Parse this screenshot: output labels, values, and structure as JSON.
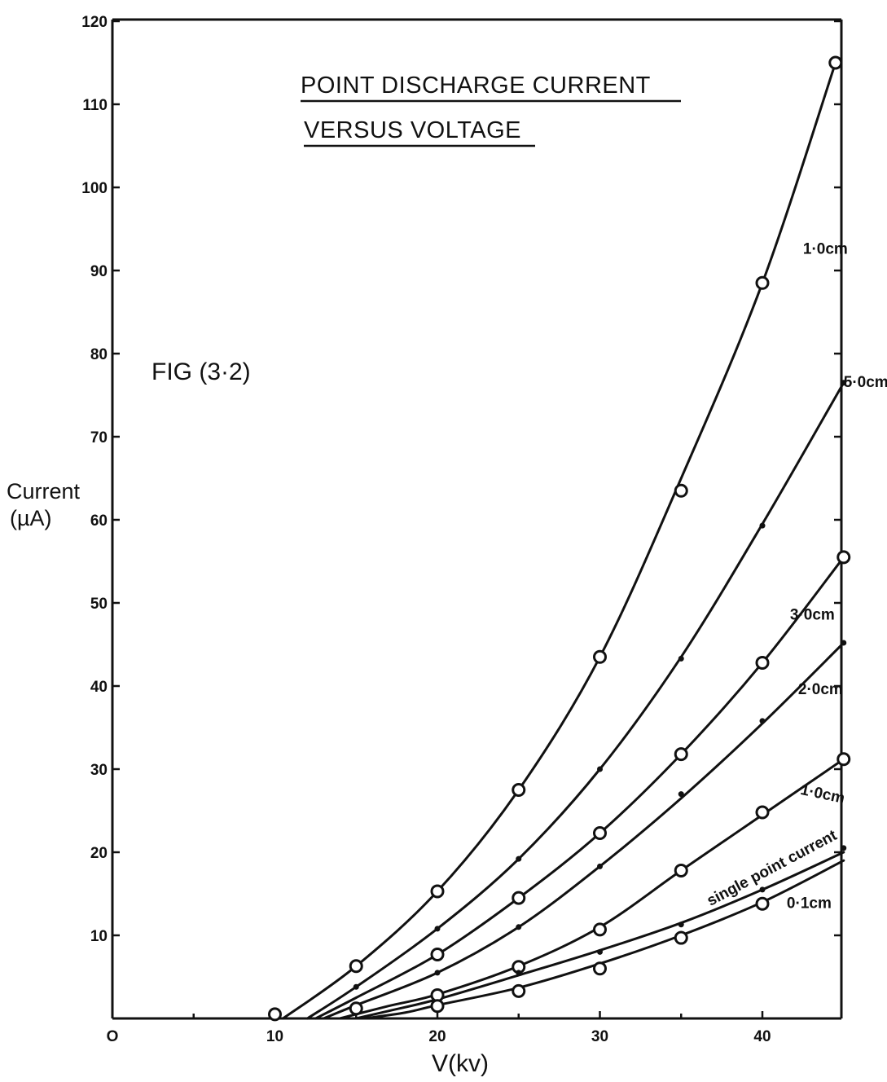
{
  "chart_data": {
    "type": "line",
    "title": "POINT DISCHARGE CURRENT",
    "subtitle": "VERSUS VOLTAGE",
    "annotation": "FIG (3·2)",
    "xlabel": "V(kv)",
    "ylabel_line1": "Current",
    "ylabel_line2": "(µA)",
    "xlim": [
      0,
      45
    ],
    "ylim": [
      0,
      120
    ],
    "x_ticks": [
      "O",
      "10",
      "20",
      "30",
      "40"
    ],
    "x_tick_values": [
      0,
      10,
      20,
      30,
      40
    ],
    "y_ticks": [
      "10",
      "20",
      "30",
      "40",
      "50",
      "60",
      "70",
      "80",
      "90",
      "100",
      "110",
      "120"
    ],
    "y_tick_values": [
      10,
      20,
      30,
      40,
      50,
      60,
      70,
      80,
      90,
      100,
      110,
      120
    ],
    "grid": false,
    "series": [
      {
        "name": "1·0cm",
        "marker": "open",
        "x": [
          10,
          15,
          20,
          25,
          30,
          35,
          40,
          44.5
        ],
        "y": [
          0.5,
          6.3,
          15.3,
          27.5,
          43.5,
          63.5,
          88.5,
          115
        ],
        "curve": [
          [
            10.5,
            0
          ],
          [
            15,
            6.3
          ],
          [
            20,
            15.3
          ],
          [
            25,
            27.5
          ],
          [
            30,
            43.5
          ],
          [
            35,
            65
          ],
          [
            40,
            88.5
          ],
          [
            44.5,
            115
          ]
        ]
      },
      {
        "name": "5·0cm",
        "marker": "dot",
        "x": [
          15,
          20,
          25,
          30,
          35,
          40,
          45
        ],
        "y": [
          3.8,
          10.8,
          19.2,
          30,
          43.3,
          59.3,
          76.5
        ],
        "curve": [
          [
            12,
            0
          ],
          [
            15,
            3.8
          ],
          [
            20,
            10.8
          ],
          [
            25,
            19.2
          ],
          [
            30,
            30
          ],
          [
            35,
            43.5
          ],
          [
            40,
            59.5
          ],
          [
            45,
            76.5
          ]
        ]
      },
      {
        "name": "3·0cm",
        "marker": "open",
        "x": [
          20,
          25,
          30,
          35,
          40,
          45
        ],
        "y": [
          7.7,
          14.5,
          22.3,
          31.8,
          42.8,
          55.5
        ],
        "curve": [
          [
            12.5,
            0
          ],
          [
            15,
            2.5
          ],
          [
            20,
            7.7
          ],
          [
            25,
            14.5
          ],
          [
            30,
            22.3
          ],
          [
            35,
            31.8
          ],
          [
            40,
            42.8
          ],
          [
            45,
            55.5
          ]
        ]
      },
      {
        "name": "2·0cm",
        "marker": "dot",
        "x": [
          20,
          25,
          30,
          35,
          40,
          45
        ],
        "y": [
          5.5,
          11,
          18.3,
          27,
          35.8,
          45.2
        ],
        "curve": [
          [
            13,
            0
          ],
          [
            15,
            1.6
          ],
          [
            20,
            5.5
          ],
          [
            25,
            11
          ],
          [
            30,
            18.3
          ],
          [
            35,
            26.5
          ],
          [
            40,
            35.5
          ],
          [
            45,
            45.2
          ]
        ]
      },
      {
        "name": "1·0cm",
        "marker": "open",
        "x": [
          20,
          25,
          30,
          35,
          40,
          45
        ],
        "y": [
          2.8,
          6.2,
          10.7,
          17.8,
          24.8,
          31.2
        ],
        "curve": [
          [
            14,
            0
          ],
          [
            17,
            1.5
          ],
          [
            20,
            2.9
          ],
          [
            25,
            6.3
          ],
          [
            30,
            11
          ],
          [
            35,
            17.8
          ],
          [
            40,
            24.5
          ],
          [
            45,
            31.2
          ]
        ]
      },
      {
        "name": "single point current",
        "marker": "dot",
        "x": [
          25,
          30,
          35,
          40,
          45
        ],
        "y": [
          5.5,
          8,
          11.3,
          15.5,
          20.5
        ],
        "curve": [
          [
            15,
            0
          ],
          [
            17,
            0.9
          ],
          [
            20,
            2.3
          ],
          [
            25,
            5.2
          ],
          [
            30,
            8.2
          ],
          [
            35,
            11.5
          ],
          [
            40,
            15.5
          ],
          [
            45,
            20
          ]
        ]
      },
      {
        "name": "0·1cm",
        "marker": "open",
        "x": [
          15,
          20,
          25,
          30,
          35,
          40
        ],
        "y": [
          1.2,
          1.5,
          3.3,
          6,
          9.7,
          13.8
        ],
        "curve": [
          [
            15.5,
            0
          ],
          [
            18,
            0.7
          ],
          [
            20,
            1.6
          ],
          [
            25,
            3.7
          ],
          [
            30,
            6.6
          ],
          [
            35,
            10
          ],
          [
            40,
            14
          ],
          [
            45,
            19
          ]
        ]
      }
    ]
  }
}
